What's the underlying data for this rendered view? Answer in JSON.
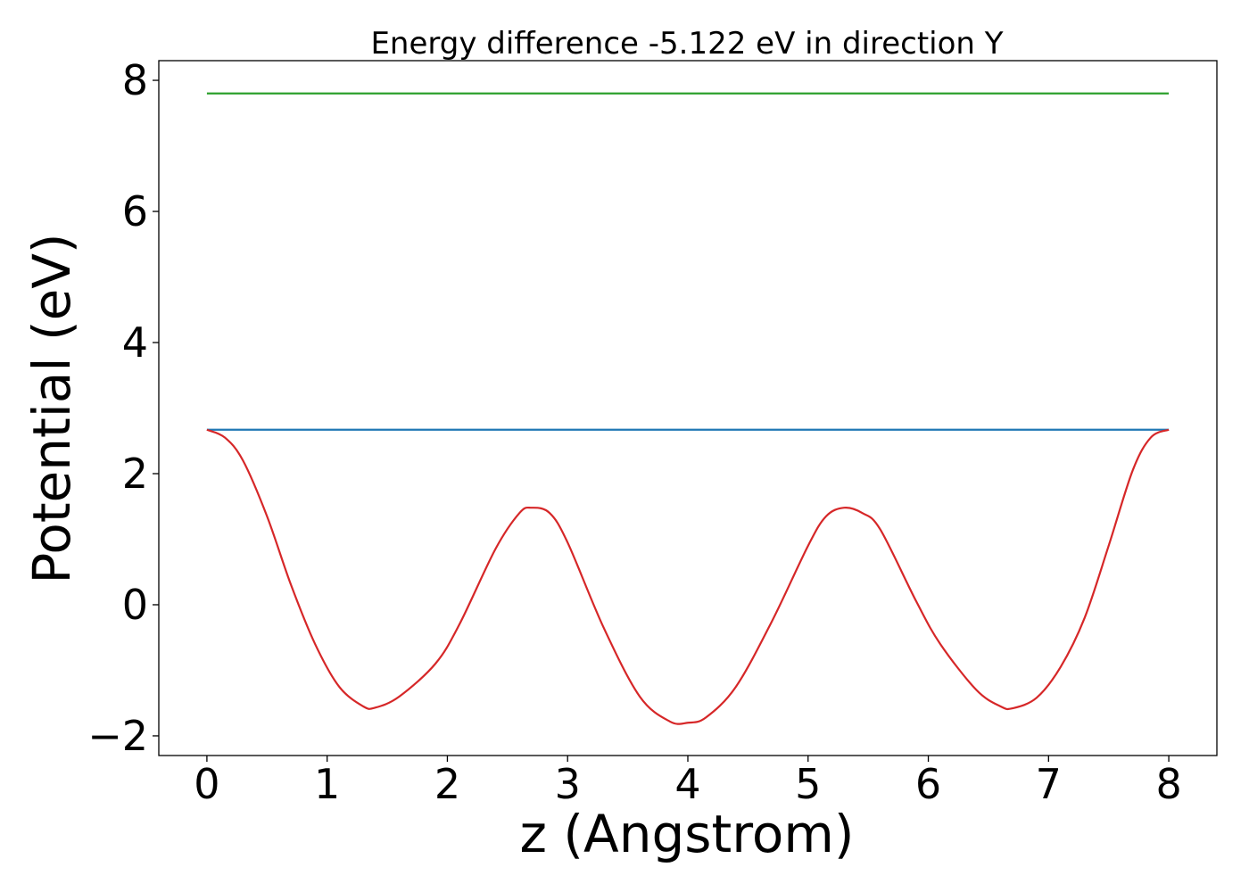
{
  "chart_data": {
    "type": "line",
    "title": "Energy difference -5.122 eV in direction Y",
    "xlabel": "z (Angstrom)",
    "ylabel": "Potential (eV)",
    "xlim": [
      -0.4,
      8.4
    ],
    "ylim": [
      -2.3,
      8.3
    ],
    "xticks": [
      0,
      1,
      2,
      3,
      4,
      5,
      6,
      7,
      8
    ],
    "yticks": [
      -2,
      0,
      2,
      4,
      6,
      8
    ],
    "xtick_labels": [
      "0",
      "1",
      "2",
      "3",
      "4",
      "5",
      "6",
      "7",
      "8"
    ],
    "ytick_labels": [
      "−2",
      "0",
      "2",
      "4",
      "6",
      "8"
    ],
    "grid": false,
    "series": [
      {
        "color": "#2ca02c",
        "x": [
          0,
          8
        ],
        "y": [
          7.8,
          7.8
        ]
      },
      {
        "color": "#1f77b4",
        "x": [
          0,
          8
        ],
        "y": [
          2.67,
          2.67
        ]
      },
      {
        "color": "#d62728",
        "x": [
          0,
          0.15,
          0.3,
          0.5,
          0.7,
          0.9,
          1.1,
          1.3,
          1.4,
          1.6,
          1.9,
          2.1,
          2.4,
          2.6,
          2.7,
          2.85,
          3.0,
          3.3,
          3.6,
          3.85,
          4.0,
          4.15,
          4.4,
          4.7,
          5.0,
          5.15,
          5.3,
          5.45,
          5.6,
          5.9,
          6.1,
          6.4,
          6.6,
          6.7,
          6.9,
          7.1,
          7.3,
          7.5,
          7.7,
          7.85,
          8.0
        ],
        "y": [
          2.67,
          2.55,
          2.2,
          1.35,
          0.3,
          -0.6,
          -1.25,
          -1.55,
          -1.57,
          -1.4,
          -0.9,
          -0.3,
          0.85,
          1.4,
          1.48,
          1.4,
          0.95,
          -0.35,
          -1.4,
          -1.78,
          -1.8,
          -1.72,
          -1.25,
          -0.25,
          0.9,
          1.35,
          1.48,
          1.4,
          1.15,
          0.05,
          -0.6,
          -1.3,
          -1.55,
          -1.58,
          -1.42,
          -0.95,
          -0.2,
          0.9,
          2.05,
          2.55,
          2.67
        ]
      }
    ]
  }
}
